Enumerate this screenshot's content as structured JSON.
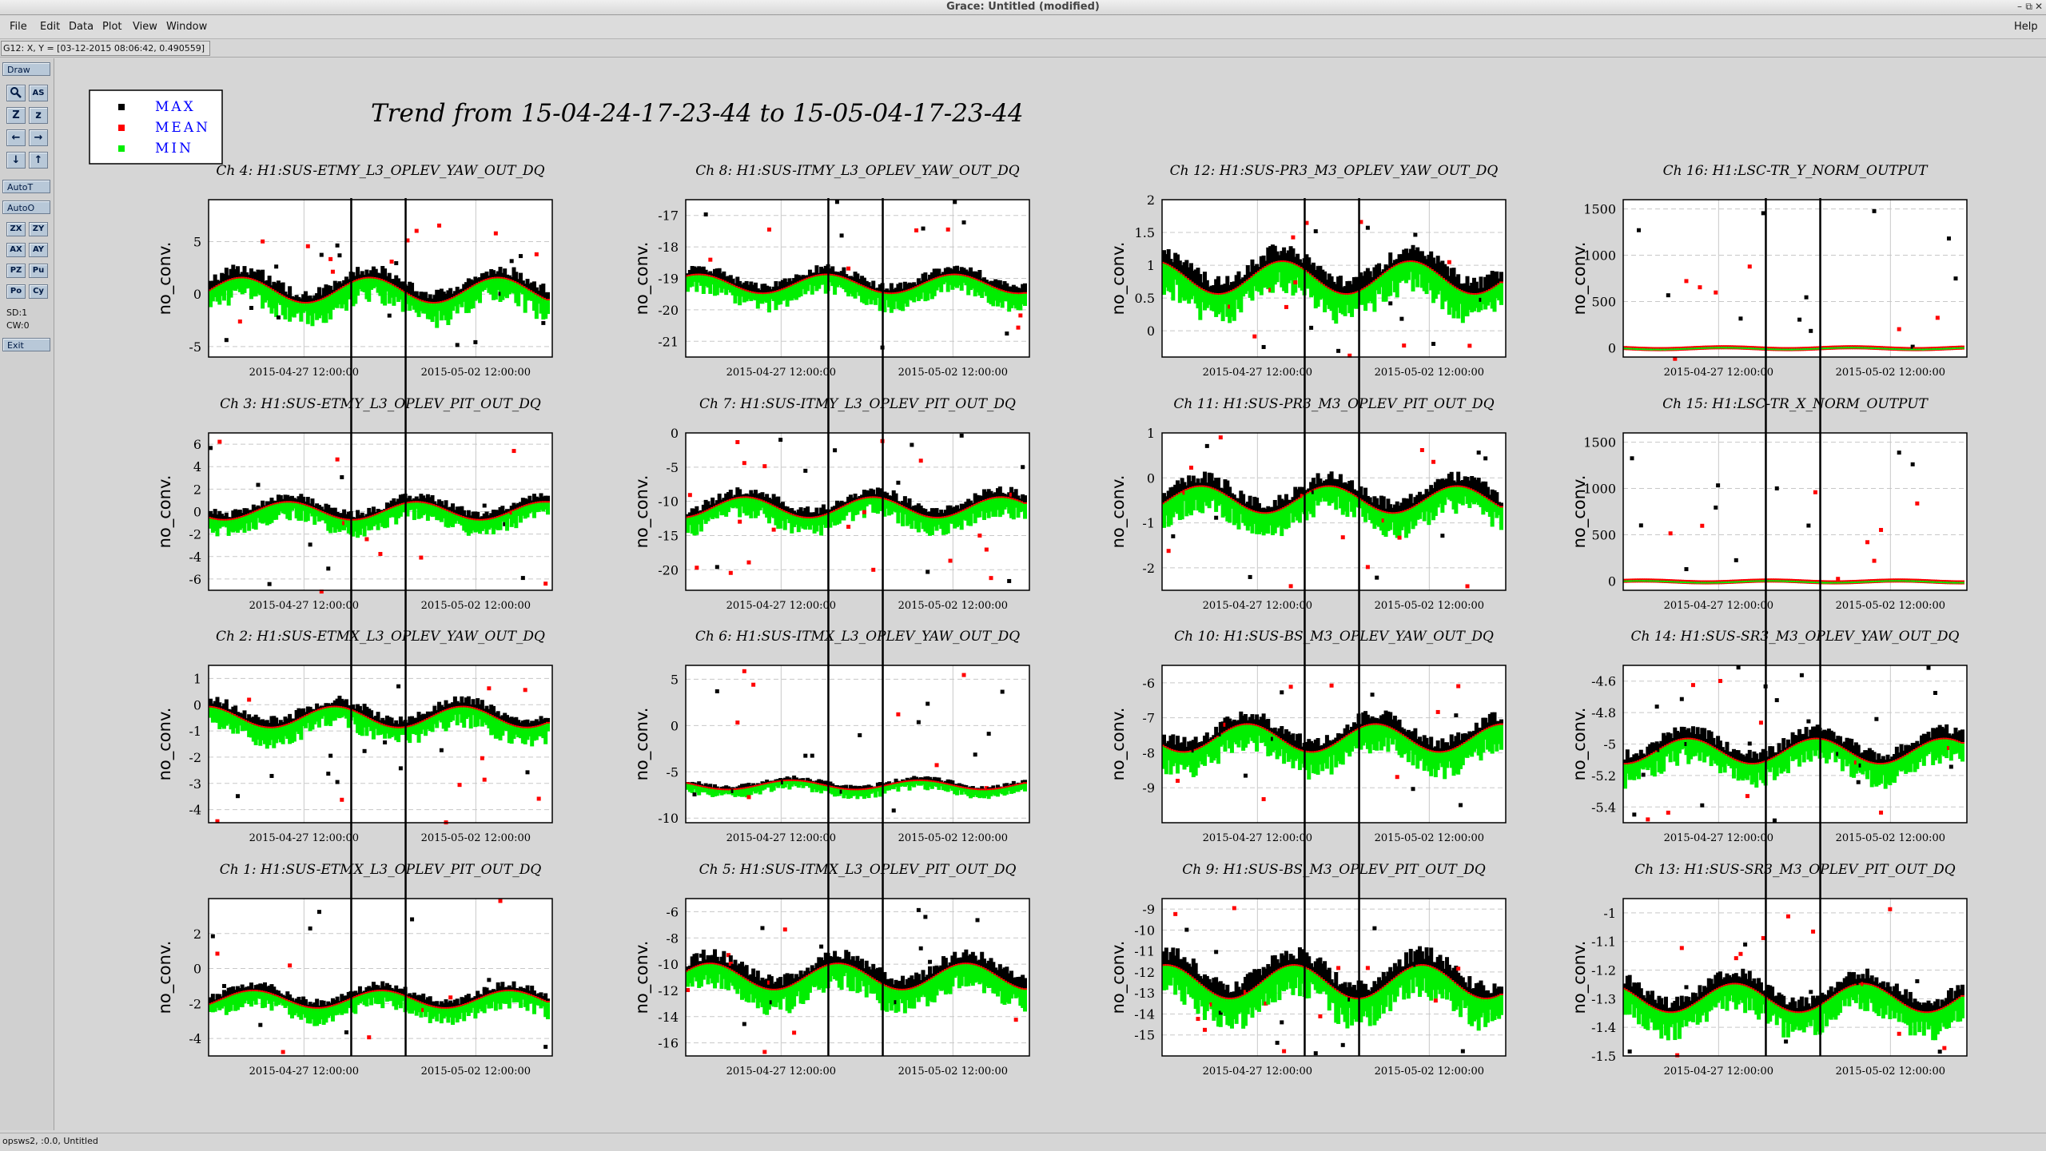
{
  "window": {
    "title": "Grace: Untitled (modified)",
    "controls": [
      "–",
      "⧉",
      "✕"
    ]
  },
  "menubar": {
    "items": [
      "File",
      "Edit",
      "Data",
      "Plot",
      "View",
      "Window"
    ],
    "help": "Help"
  },
  "locator": {
    "text": "G12: X, Y = [03-12-2015 08:06:42, 0.490559]"
  },
  "toolbar": {
    "draw": "Draw",
    "autot": "AutoT",
    "autoo": "AutoO",
    "exit": "Exit",
    "sd": "SD:1",
    "cw": "CW:0",
    "tools": [
      [
        "zoom-icon",
        "AS"
      ],
      [
        "Z",
        "z"
      ],
      [
        "←",
        "→"
      ],
      [
        "↓",
        "↑"
      ]
    ],
    "tools2": [
      [
        "ZX",
        "ZY"
      ],
      [
        "AX",
        "AY"
      ],
      [
        "PZ",
        "Pu"
      ],
      [
        "Po",
        "Cy"
      ]
    ]
  },
  "statusbar": {
    "text": "opsws2, :0.0, Untitled"
  },
  "chart_data": {
    "type": "scatter",
    "title": "Trend from 15-04-24-17-23-44 to 15-05-04-17-23-44",
    "legend": {
      "placement": "top-left",
      "entries": [
        {
          "name": "MAX",
          "color": "#000000"
        },
        {
          "name": "MEAN",
          "color": "#ff0000"
        },
        {
          "name": "MIN",
          "color": "#00ee00"
        }
      ]
    },
    "ylabel": "no_conv.",
    "x_ticks": [
      "2015-04-27 12:00:00",
      "2015-05-02 12:00:00"
    ],
    "x_range": [
      "2015-04-24 17:23:44",
      "2015-05-04 17:23:44"
    ],
    "vertical_markers": [
      "2015-04-28 21:00:00",
      "2015-04-30 11:00:00"
    ],
    "grid": true,
    "panels": [
      {
        "channel": "Ch 4: H1:SUS-ETMY_L3_OPLEV_YAW_OUT_DQ",
        "ylim": [
          -6,
          9
        ],
        "yticks": [
          "5",
          "0",
          "-5"
        ],
        "ytick_values": [
          5,
          0,
          -5
        ],
        "base": 0.3,
        "noise": 1.2
      },
      {
        "channel": "Ch 8: H1:SUS-ITMY_L3_OPLEV_YAW_OUT_DQ",
        "ylim": [
          -21.5,
          -16.5
        ],
        "yticks": [
          "-17",
          "-18",
          "-19",
          "-20",
          "-21"
        ],
        "ytick_values": [
          -17,
          -18,
          -19,
          -20,
          -21
        ],
        "base": -19.2,
        "noise": 0.3
      },
      {
        "channel": "Ch 12: H1:SUS-PR3_M3_OPLEV_YAW_OUT_DQ",
        "ylim": [
          -0.4,
          2.0
        ],
        "yticks": [
          "2",
          "1.5",
          "1",
          "0.5",
          "0"
        ],
        "ytick_values": [
          2,
          1.5,
          1,
          0.5,
          0
        ],
        "base": 0.8,
        "noise": 0.25
      },
      {
        "channel": "Ch 16: H1:LSC-TR_Y_NORM_OUTPUT",
        "ylim": [
          -100,
          1600
        ],
        "yticks": [
          "1500",
          "1000",
          "500",
          "0"
        ],
        "ytick_values": [
          1500,
          1000,
          500,
          0
        ],
        "base": 0,
        "noise": 10
      },
      {
        "channel": "Ch 3: H1:SUS-ETMY_L3_OPLEV_PIT_OUT_DQ",
        "ylim": [
          -7,
          7
        ],
        "yticks": [
          "6",
          "4",
          "2",
          "0",
          "-2",
          "-4",
          "-6"
        ],
        "ytick_values": [
          6,
          4,
          2,
          0,
          -2,
          -4,
          -6
        ],
        "base": 0,
        "noise": 0.8
      },
      {
        "channel": "Ch 7: H1:SUS-ITMY_L3_OPLEV_PIT_OUT_DQ",
        "ylim": [
          -23,
          0
        ],
        "yticks": [
          "0",
          "-5",
          "-10",
          "-15",
          "-20"
        ],
        "ytick_values": [
          0,
          -5,
          -10,
          -15,
          -20
        ],
        "base": -11,
        "noise": 1.5
      },
      {
        "channel": "Ch 11: H1:SUS-PR3_M3_OPLEV_PIT_OUT_DQ",
        "ylim": [
          -2.5,
          1.0
        ],
        "yticks": [
          "1",
          "0",
          "-1",
          "-2"
        ],
        "ytick_values": [
          1,
          0,
          -1,
          -2
        ],
        "base": -0.5,
        "noise": 0.3
      },
      {
        "channel": "Ch 15: H1:LSC-TR_X_NORM_OUTPUT",
        "ylim": [
          -100,
          1600
        ],
        "yticks": [
          "1500",
          "1000",
          "500",
          "0"
        ],
        "ytick_values": [
          1500,
          1000,
          500,
          0
        ],
        "base": 0,
        "noise": 10
      },
      {
        "channel": "Ch 2: H1:SUS-ETMX_L3_OPLEV_YAW_OUT_DQ",
        "ylim": [
          -4.5,
          1.5
        ],
        "yticks": [
          "1",
          "0",
          "-1",
          "-2",
          "-3",
          "-4"
        ],
        "ytick_values": [
          1,
          0,
          -1,
          -2,
          -3,
          -4
        ],
        "base": -0.5,
        "noise": 0.4
      },
      {
        "channel": "Ch 6: H1:SUS-ITMX_L3_OPLEV_YAW_OUT_DQ",
        "ylim": [
          -10.5,
          6.5
        ],
        "yticks": [
          "5",
          "0",
          "-5",
          "-10"
        ],
        "ytick_values": [
          5,
          0,
          -5,
          -10
        ],
        "base": -6.5,
        "noise": 0.5
      },
      {
        "channel": "Ch 10: H1:SUS-BS_M3_OPLEV_YAW_OUT_DQ",
        "ylim": [
          -10,
          -5.5
        ],
        "yticks": [
          "-6",
          "-7",
          "-8",
          "-9"
        ],
        "ytick_values": [
          -6,
          -7,
          -8,
          -9
        ],
        "base": -7.6,
        "noise": 0.4
      },
      {
        "channel": "Ch 14: H1:SUS-SR3_M3_OPLEV_YAW_OUT_DQ",
        "ylim": [
          -5.5,
          -4.5
        ],
        "yticks": [
          "-4.6",
          "-4.8",
          "-5",
          "-5.2",
          "-5.4"
        ],
        "ytick_values": [
          -4.6,
          -4.8,
          -5,
          -5.2,
          -5.4
        ],
        "base": -5.05,
        "noise": 0.08
      },
      {
        "channel": "Ch 1: H1:SUS-ETMX_L3_OPLEV_PIT_OUT_DQ",
        "ylim": [
          -5,
          4
        ],
        "yticks": [
          "2",
          "0",
          "-2",
          "-4"
        ],
        "ytick_values": [
          2,
          0,
          -2,
          -4
        ],
        "base": -1.8,
        "noise": 0.5
      },
      {
        "channel": "Ch 5: H1:SUS-ITMX_L3_OPLEV_PIT_OUT_DQ",
        "ylim": [
          -17,
          -5
        ],
        "yticks": [
          "-6",
          "-8",
          "-10",
          "-12",
          "-14",
          "-16"
        ],
        "ytick_values": [
          -6,
          -8,
          -10,
          -12,
          -14,
          -16
        ],
        "base": -11,
        "noise": 1.0
      },
      {
        "channel": "Ch 9: H1:SUS-BS_M3_OPLEV_PIT_OUT_DQ",
        "ylim": [
          -16,
          -8.5
        ],
        "yticks": [
          "-9",
          "-10",
          "-11",
          "-12",
          "-13",
          "-14",
          "-15"
        ],
        "ytick_values": [
          -9,
          -10,
          -11,
          -12,
          -13,
          -14,
          -15
        ],
        "base": -12.5,
        "noise": 0.8
      },
      {
        "channel": "Ch 13: H1:SUS-SR3_M3_OPLEV_PIT_OUT_DQ",
        "ylim": [
          -1.5,
          -0.95
        ],
        "yticks": [
          "-1",
          "-1.1",
          "-1.2",
          "-1.3",
          "-1.4",
          "-1.5"
        ],
        "ytick_values": [
          -1,
          -1.1,
          -1.2,
          -1.3,
          -1.4,
          -1.5
        ],
        "base": -1.3,
        "noise": 0.05
      }
    ]
  }
}
